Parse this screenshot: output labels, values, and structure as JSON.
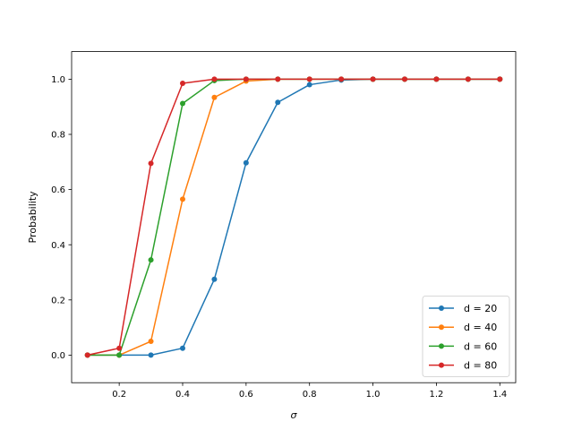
{
  "chart_data": {
    "type": "line",
    "title": "",
    "xlabel": "σ",
    "ylabel": "Probability",
    "xlim": [
      0.05,
      1.45
    ],
    "ylim": [
      -0.1,
      1.1
    ],
    "xticks": [
      0.2,
      0.4,
      0.6,
      0.8,
      1.0,
      1.2,
      1.4
    ],
    "xtick_labels": [
      "0.2",
      "0.4",
      "0.6",
      "0.8",
      "1.0",
      "1.2",
      "1.4"
    ],
    "yticks": [
      0.0,
      0.2,
      0.4,
      0.6,
      0.8,
      1.0
    ],
    "ytick_labels": [
      "0.0",
      "0.2",
      "0.4",
      "0.6",
      "0.8",
      "1.0"
    ],
    "grid": false,
    "legend_position": "bottom-right",
    "x": [
      0.1,
      0.2,
      0.3,
      0.4,
      0.5,
      0.6,
      0.7,
      0.8,
      0.9,
      1.0,
      1.1,
      1.2,
      1.3,
      1.4
    ],
    "series": [
      {
        "name": "d = 20",
        "color": "#1f77b4",
        "values": [
          0.0,
          0.0,
          0.0,
          0.025,
          0.275,
          0.697,
          0.916,
          0.98,
          0.997,
          1.0,
          1.0,
          1.0,
          1.0,
          1.0
        ]
      },
      {
        "name": "d = 40",
        "color": "#ff7f0e",
        "values": [
          0.0,
          0.0,
          0.05,
          0.565,
          0.934,
          0.993,
          1.0,
          1.0,
          1.0,
          1.0,
          1.0,
          1.0,
          1.0,
          1.0
        ]
      },
      {
        "name": "d = 60",
        "color": "#2ca02c",
        "values": [
          0.0,
          0.0,
          0.345,
          0.912,
          0.995,
          1.0,
          1.0,
          1.0,
          1.0,
          1.0,
          1.0,
          1.0,
          1.0,
          1.0
        ]
      },
      {
        "name": "d = 80",
        "color": "#d62728",
        "values": [
          0.0,
          0.025,
          0.695,
          0.985,
          1.0,
          1.0,
          1.0,
          1.0,
          1.0,
          1.0,
          1.0,
          1.0,
          1.0,
          1.0
        ]
      }
    ]
  }
}
